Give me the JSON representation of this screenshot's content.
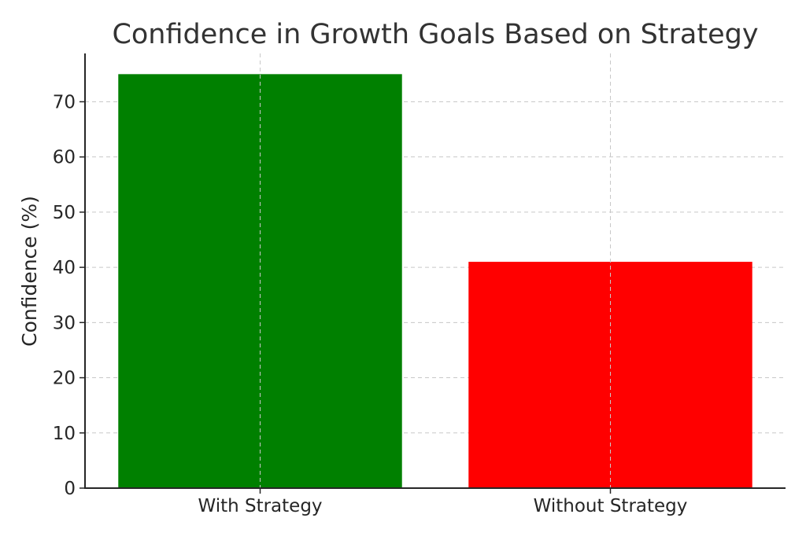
{
  "chart_data": {
    "type": "bar",
    "title": "Confidence in Growth Goals Based on Strategy",
    "xlabel": "",
    "ylabel": "Confidence (%)",
    "categories": [
      "With Strategy",
      "Without Strategy"
    ],
    "values": [
      75,
      41
    ],
    "colors": [
      "#008000",
      "#ff0000"
    ],
    "ylim": [
      0,
      78.75
    ],
    "yticks": [
      0,
      10,
      20,
      30,
      40,
      50,
      60,
      70
    ],
    "grid": true,
    "legend": "none"
  }
}
